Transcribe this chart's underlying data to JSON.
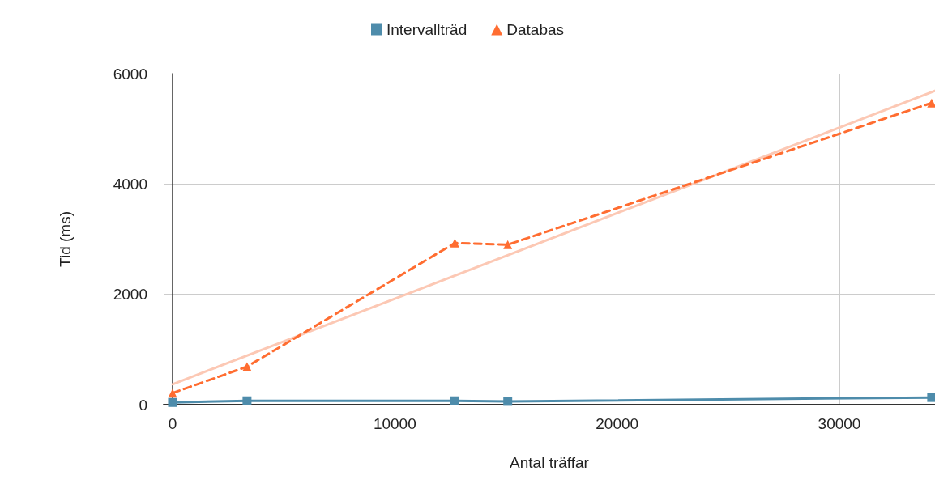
{
  "chart_data": {
    "type": "line",
    "xlabel": "Antal träffar",
    "ylabel": "Tid (ms)",
    "xlim": [
      -400,
      34300
    ],
    "xticks": [
      0,
      10000,
      20000,
      30000
    ],
    "ylim": [
      0,
      6000
    ],
    "yticks": [
      0,
      2000,
      4000,
      6000
    ],
    "grid": true,
    "legend": "top",
    "series": [
      {
        "name": "Intervallträd",
        "color": "#4e8cab",
        "marker": "square",
        "line_style": "solid",
        "x": [
          0,
          3350,
          12700,
          15080,
          34150
        ],
        "values": [
          40,
          70,
          70,
          60,
          130
        ]
      },
      {
        "name": "Databas",
        "color": "#ff6d31",
        "marker": "triangle",
        "line_style": "dashed",
        "x": [
          0,
          3350,
          12700,
          15080,
          34150
        ],
        "values": [
          210,
          690,
          2930,
          2900,
          5470
        ]
      },
      {
        "type": "line",
        "color": "#fcc8b4",
        "marker": "none",
        "line_style": "solid",
        "x": [
          0,
          34300
        ],
        "values": [
          370,
          5690
        ]
      }
    ]
  }
}
